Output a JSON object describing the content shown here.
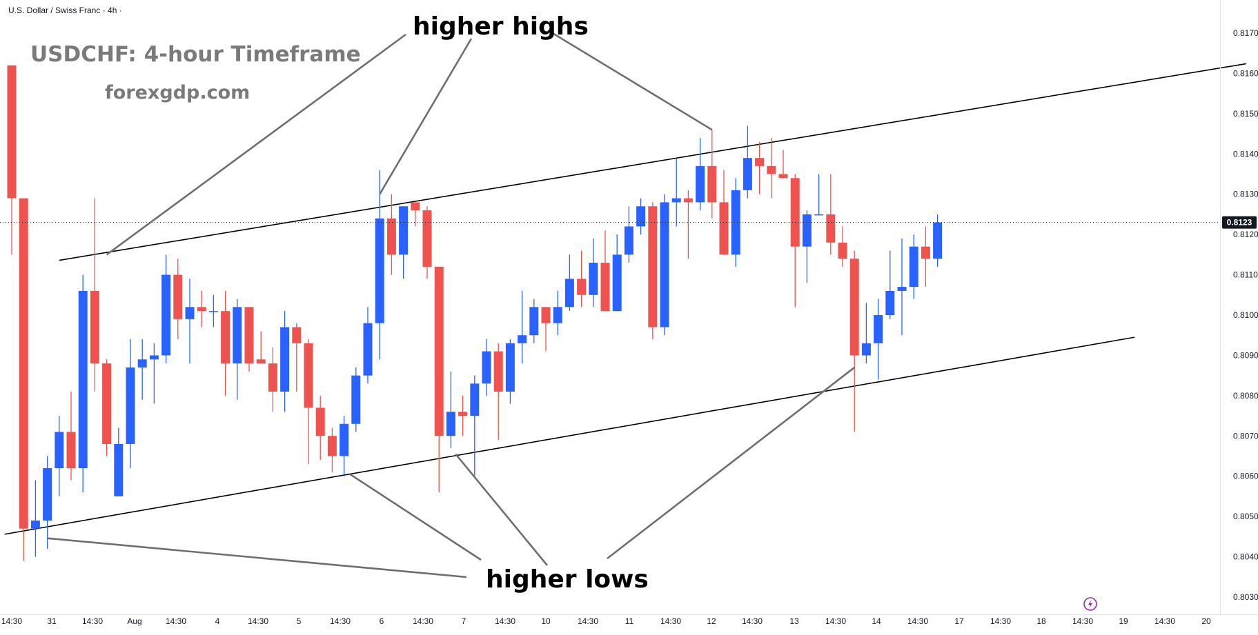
{
  "header": {
    "symbol_label": "U.S. Dollar / Swiss Franc · 4h ·"
  },
  "watermark": {
    "title": "USDCHF: 4-hour Timeframe",
    "site": "forexgdp.com"
  },
  "annotations": {
    "higher_highs": "higher highs",
    "higher_lows": "higher lows"
  },
  "colors": {
    "up": "#2962ff",
    "down": "#ef5350",
    "trendline": "#000000",
    "pointer": "#6e6e6e",
    "badge": "#131722",
    "axis_text": "#131722"
  },
  "chart_data": {
    "type": "candlestick",
    "title": "USDCHF: 4-hour Timeframe",
    "symbol": "U.S. Dollar / Swiss Franc",
    "timeframe": "4h",
    "ylim": [
      0.8025,
      0.8175
    ],
    "y_ticks": [
      "0.8030",
      "0.8040",
      "0.8050",
      "0.8060",
      "0.8070",
      "0.8080",
      "0.8090",
      "0.8100",
      "0.8110",
      "0.8120",
      "0.8130",
      "0.8140",
      "0.8150",
      "0.8160",
      "0.8170"
    ],
    "x_ticks": [
      "14:30",
      "31",
      "14:30",
      "Aug",
      "14:30",
      "4",
      "14:30",
      "5",
      "14:30",
      "6",
      "14:30",
      "7",
      "14:30",
      "10",
      "14:30",
      "11",
      "14:30",
      "12",
      "14:30",
      "13",
      "14:30",
      "14",
      "14:30",
      "17",
      "14:30",
      "18",
      "14:30",
      "19",
      "14:30",
      "20"
    ],
    "current_price": "0.8123",
    "candles": [
      {
        "o": 0.8162,
        "h": 0.8162,
        "l": 0.8115,
        "c": 0.8129
      },
      {
        "o": 0.8129,
        "h": 0.8129,
        "l": 0.8039,
        "c": 0.8047
      },
      {
        "o": 0.8047,
        "h": 0.8059,
        "l": 0.804,
        "c": 0.8049
      },
      {
        "o": 0.8049,
        "h": 0.8065,
        "l": 0.8042,
        "c": 0.8062
      },
      {
        "o": 0.8062,
        "h": 0.8075,
        "l": 0.8055,
        "c": 0.8071
      },
      {
        "o": 0.8071,
        "h": 0.8081,
        "l": 0.8059,
        "c": 0.8062
      },
      {
        "o": 0.8062,
        "h": 0.811,
        "l": 0.8056,
        "c": 0.8106
      },
      {
        "o": 0.8106,
        "h": 0.8129,
        "l": 0.8081,
        "c": 0.8088
      },
      {
        "o": 0.8088,
        "h": 0.8089,
        "l": 0.8065,
        "c": 0.8068
      },
      {
        "o": 0.8055,
        "h": 0.8072,
        "l": 0.8055,
        "c": 0.8068
      },
      {
        "o": 0.8068,
        "h": 0.8094,
        "l": 0.8062,
        "c": 0.8087
      },
      {
        "o": 0.8087,
        "h": 0.8094,
        "l": 0.8079,
        "c": 0.8089
      },
      {
        "o": 0.8089,
        "h": 0.8093,
        "l": 0.8078,
        "c": 0.809
      },
      {
        "o": 0.809,
        "h": 0.8115,
        "l": 0.8088,
        "c": 0.811
      },
      {
        "o": 0.811,
        "h": 0.8114,
        "l": 0.8094,
        "c": 0.8099
      },
      {
        "o": 0.8099,
        "h": 0.8109,
        "l": 0.8088,
        "c": 0.8102
      },
      {
        "o": 0.8102,
        "h": 0.8106,
        "l": 0.8097,
        "c": 0.8101
      },
      {
        "o": 0.8101,
        "h": 0.8105,
        "l": 0.8097,
        "c": 0.8101
      },
      {
        "o": 0.8101,
        "h": 0.8106,
        "l": 0.808,
        "c": 0.8088
      },
      {
        "o": 0.8088,
        "h": 0.8104,
        "l": 0.8079,
        "c": 0.8102
      },
      {
        "o": 0.8102,
        "h": 0.8102,
        "l": 0.8086,
        "c": 0.8088
      },
      {
        "o": 0.8089,
        "h": 0.8096,
        "l": 0.8088,
        "c": 0.8088
      },
      {
        "o": 0.8088,
        "h": 0.8092,
        "l": 0.8076,
        "c": 0.8081
      },
      {
        "o": 0.8081,
        "h": 0.8101,
        "l": 0.8076,
        "c": 0.8097
      },
      {
        "o": 0.8097,
        "h": 0.8098,
        "l": 0.8081,
        "c": 0.8093
      },
      {
        "o": 0.8093,
        "h": 0.8094,
        "l": 0.8063,
        "c": 0.8077
      },
      {
        "o": 0.8077,
        "h": 0.808,
        "l": 0.8064,
        "c": 0.807
      },
      {
        "o": 0.807,
        "h": 0.8072,
        "l": 0.8061,
        "c": 0.8065
      },
      {
        "o": 0.8065,
        "h": 0.8075,
        "l": 0.806,
        "c": 0.8073
      },
      {
        "o": 0.8073,
        "h": 0.8087,
        "l": 0.8071,
        "c": 0.8085
      },
      {
        "o": 0.8085,
        "h": 0.8102,
        "l": 0.8083,
        "c": 0.8098
      },
      {
        "o": 0.8098,
        "h": 0.8136,
        "l": 0.8089,
        "c": 0.8124
      },
      {
        "o": 0.8124,
        "h": 0.813,
        "l": 0.811,
        "c": 0.8115
      },
      {
        "o": 0.8115,
        "h": 0.8127,
        "l": 0.8109,
        "c": 0.8127
      },
      {
        "o": 0.8128,
        "h": 0.8128,
        "l": 0.8122,
        "c": 0.8126
      },
      {
        "o": 0.8126,
        "h": 0.8127,
        "l": 0.8109,
        "c": 0.8112
      },
      {
        "o": 0.8112,
        "h": 0.8112,
        "l": 0.8056,
        "c": 0.807
      },
      {
        "o": 0.807,
        "h": 0.8086,
        "l": 0.8067,
        "c": 0.8076
      },
      {
        "o": 0.8076,
        "h": 0.808,
        "l": 0.807,
        "c": 0.8075
      },
      {
        "o": 0.8075,
        "h": 0.8085,
        "l": 0.806,
        "c": 0.8083
      },
      {
        "o": 0.8083,
        "h": 0.8094,
        "l": 0.808,
        "c": 0.8091
      },
      {
        "o": 0.8091,
        "h": 0.8093,
        "l": 0.8069,
        "c": 0.8081
      },
      {
        "o": 0.8081,
        "h": 0.8094,
        "l": 0.8078,
        "c": 0.8093
      },
      {
        "o": 0.8093,
        "h": 0.8106,
        "l": 0.8088,
        "c": 0.8095
      },
      {
        "o": 0.8095,
        "h": 0.8104,
        "l": 0.8093,
        "c": 0.8102
      },
      {
        "o": 0.8102,
        "h": 0.8102,
        "l": 0.8091,
        "c": 0.8098
      },
      {
        "o": 0.8098,
        "h": 0.8106,
        "l": 0.8095,
        "c": 0.8102
      },
      {
        "o": 0.8102,
        "h": 0.8115,
        "l": 0.8101,
        "c": 0.8109
      },
      {
        "o": 0.8109,
        "h": 0.8116,
        "l": 0.8102,
        "c": 0.8105
      },
      {
        "o": 0.8105,
        "h": 0.8119,
        "l": 0.8102,
        "c": 0.8113
      },
      {
        "o": 0.8113,
        "h": 0.8121,
        "l": 0.8101,
        "c": 0.8101
      },
      {
        "o": 0.8101,
        "h": 0.812,
        "l": 0.8101,
        "c": 0.8115
      },
      {
        "o": 0.8115,
        "h": 0.8127,
        "l": 0.8113,
        "c": 0.8122
      },
      {
        "o": 0.8122,
        "h": 0.8129,
        "l": 0.812,
        "c": 0.8127
      },
      {
        "o": 0.8127,
        "h": 0.8128,
        "l": 0.8094,
        "c": 0.8097
      },
      {
        "o": 0.8097,
        "h": 0.813,
        "l": 0.8095,
        "c": 0.8128
      },
      {
        "o": 0.8128,
        "h": 0.8139,
        "l": 0.8122,
        "c": 0.8129
      },
      {
        "o": 0.8129,
        "h": 0.8131,
        "l": 0.8114,
        "c": 0.8128
      },
      {
        "o": 0.8128,
        "h": 0.8144,
        "l": 0.8126,
        "c": 0.8137
      },
      {
        "o": 0.8137,
        "h": 0.8146,
        "l": 0.8124,
        "c": 0.8128
      },
      {
        "o": 0.8128,
        "h": 0.8136,
        "l": 0.8115,
        "c": 0.8115
      },
      {
        "o": 0.8115,
        "h": 0.8134,
        "l": 0.8112,
        "c": 0.8131
      },
      {
        "o": 0.8131,
        "h": 0.8147,
        "l": 0.8129,
        "c": 0.8139
      },
      {
        "o": 0.8139,
        "h": 0.8143,
        "l": 0.813,
        "c": 0.8137
      },
      {
        "o": 0.8137,
        "h": 0.8144,
        "l": 0.8129,
        "c": 0.8135
      },
      {
        "o": 0.8135,
        "h": 0.8141,
        "l": 0.8134,
        "c": 0.8134
      },
      {
        "o": 0.8134,
        "h": 0.8135,
        "l": 0.8102,
        "c": 0.8117
      },
      {
        "o": 0.8117,
        "h": 0.8126,
        "l": 0.8108,
        "c": 0.8125
      },
      {
        "o": 0.8125,
        "h": 0.8135,
        "l": 0.8125,
        "c": 0.8125
      },
      {
        "o": 0.8125,
        "h": 0.8135,
        "l": 0.8115,
        "c": 0.8118
      },
      {
        "o": 0.8118,
        "h": 0.8122,
        "l": 0.8112,
        "c": 0.8114
      },
      {
        "o": 0.8114,
        "h": 0.8116,
        "l": 0.8071,
        "c": 0.809
      },
      {
        "o": 0.809,
        "h": 0.8103,
        "l": 0.8088,
        "c": 0.8093
      },
      {
        "o": 0.8093,
        "h": 0.8104,
        "l": 0.8084,
        "c": 0.81
      },
      {
        "o": 0.81,
        "h": 0.8116,
        "l": 0.8099,
        "c": 0.8106
      },
      {
        "o": 0.8106,
        "h": 0.8119,
        "l": 0.8095,
        "c": 0.8107
      },
      {
        "o": 0.8107,
        "h": 0.812,
        "l": 0.8104,
        "c": 0.8117
      },
      {
        "o": 0.8117,
        "h": 0.8122,
        "l": 0.8107,
        "c": 0.8114
      },
      {
        "o": 0.8114,
        "h": 0.8125,
        "l": 0.8112,
        "c": 0.8123
      }
    ],
    "trendlines": [
      {
        "name": "upper",
        "from": {
          "bar": 4,
          "price": 0.81136
        },
        "to": {
          "bar": 104,
          "price": 0.81624
        }
      },
      {
        "name": "lower",
        "from": {
          "bar": -0.6,
          "price": 0.80456
        },
        "to": {
          "bar": 94.6,
          "price": 0.80945
        }
      }
    ]
  }
}
